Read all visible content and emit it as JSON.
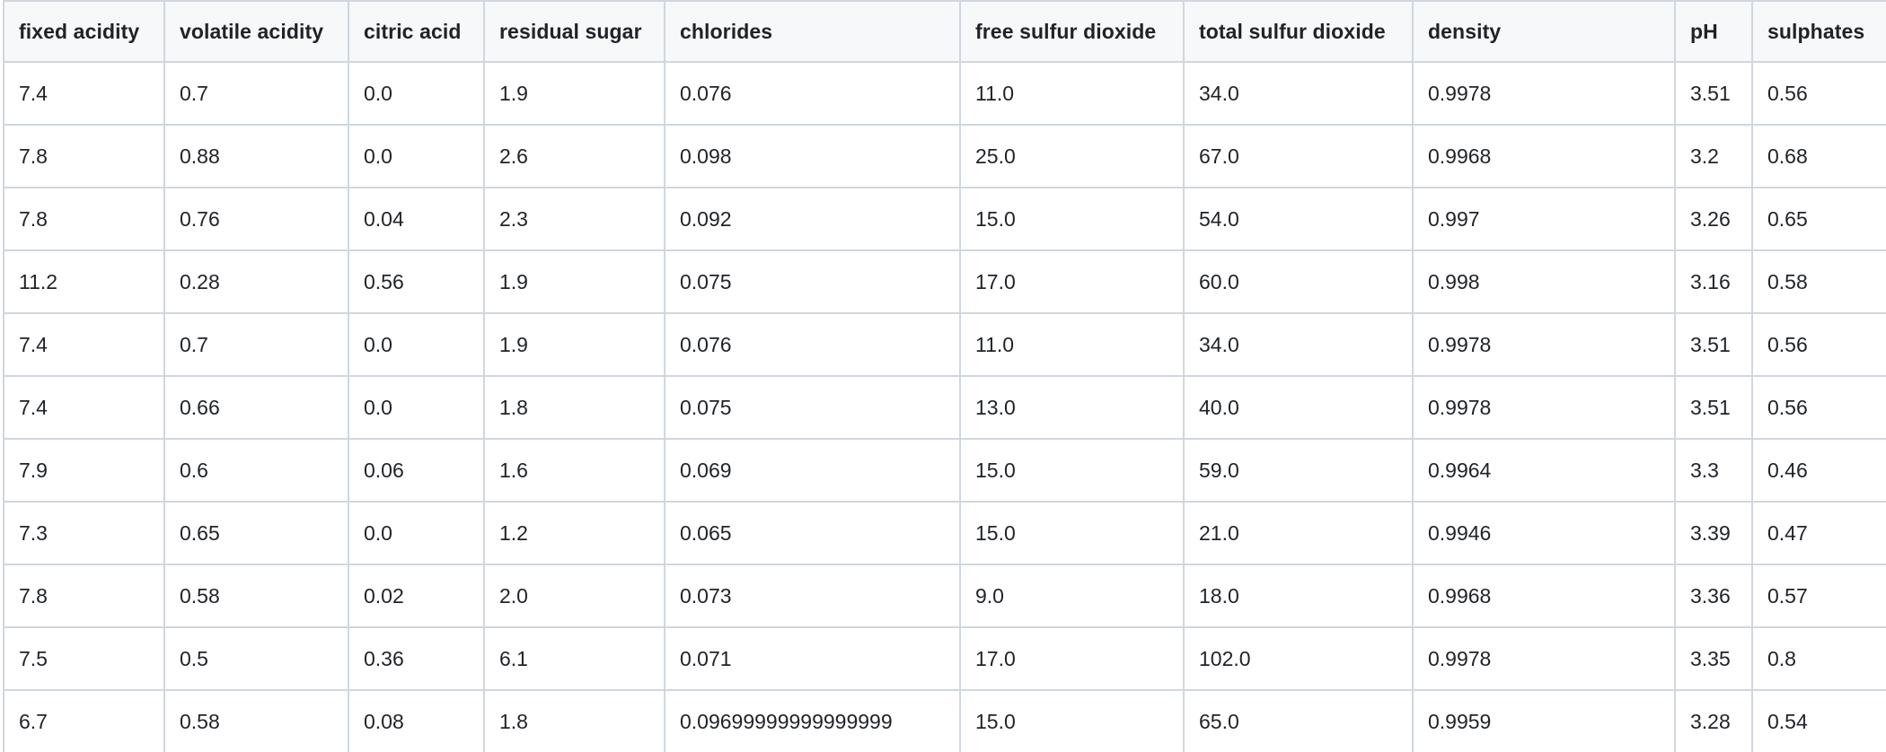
{
  "table": {
    "columns": [
      "fixed acidity",
      "volatile acidity",
      "citric acid",
      "residual sugar",
      "chlorides",
      "free sulfur dioxide",
      "total sulfur dioxide",
      "density",
      "pH",
      "sulphates"
    ],
    "rows": [
      [
        "7.4",
        "0.7",
        "0.0",
        "1.9",
        "0.076",
        "11.0",
        "34.0",
        "0.9978",
        "3.51",
        "0.56"
      ],
      [
        "7.8",
        "0.88",
        "0.0",
        "2.6",
        "0.098",
        "25.0",
        "67.0",
        "0.9968",
        "3.2",
        "0.68"
      ],
      [
        "7.8",
        "0.76",
        "0.04",
        "2.3",
        "0.092",
        "15.0",
        "54.0",
        "0.997",
        "3.26",
        "0.65"
      ],
      [
        "11.2",
        "0.28",
        "0.56",
        "1.9",
        "0.075",
        "17.0",
        "60.0",
        "0.998",
        "3.16",
        "0.58"
      ],
      [
        "7.4",
        "0.7",
        "0.0",
        "1.9",
        "0.076",
        "11.0",
        "34.0",
        "0.9978",
        "3.51",
        "0.56"
      ],
      [
        "7.4",
        "0.66",
        "0.0",
        "1.8",
        "0.075",
        "13.0",
        "40.0",
        "0.9978",
        "3.51",
        "0.56"
      ],
      [
        "7.9",
        "0.6",
        "0.06",
        "1.6",
        "0.069",
        "15.0",
        "59.0",
        "0.9964",
        "3.3",
        "0.46"
      ],
      [
        "7.3",
        "0.65",
        "0.0",
        "1.2",
        "0.065",
        "15.0",
        "21.0",
        "0.9946",
        "3.39",
        "0.47"
      ],
      [
        "7.8",
        "0.58",
        "0.02",
        "2.0",
        "0.073",
        "9.0",
        "18.0",
        "0.9968",
        "3.36",
        "0.57"
      ],
      [
        "7.5",
        "0.5",
        "0.36",
        "6.1",
        "0.071",
        "17.0",
        "102.0",
        "0.9978",
        "3.35",
        "0.8"
      ],
      [
        "6.7",
        "0.58",
        "0.08",
        "1.8",
        "0.09699999999999999",
        "15.0",
        "65.0",
        "0.9959",
        "3.28",
        "0.54"
      ]
    ]
  }
}
